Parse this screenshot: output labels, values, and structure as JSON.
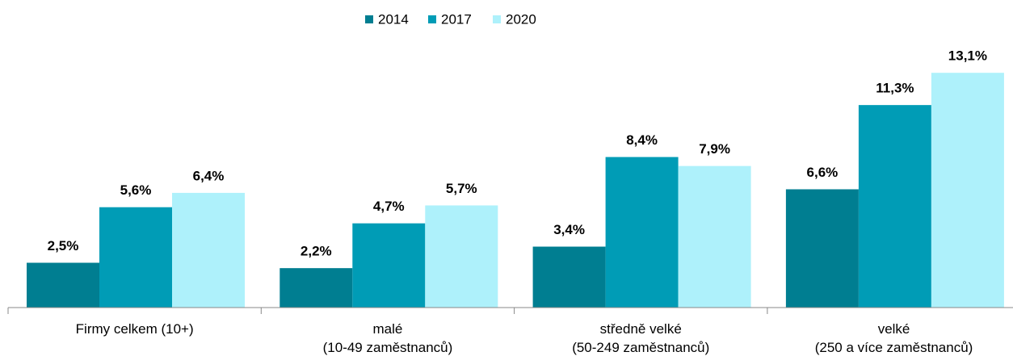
{
  "chart_data": {
    "type": "bar",
    "categories": [
      "Firmy celkem (10+)",
      "malé\n(10-49 zaměstnanců)",
      "středně velké\n(50-249 zaměstnanců)",
      "velké\n(250 a více zaměstnanců)"
    ],
    "series": [
      {
        "name": "2014",
        "color": "#007e91",
        "values": [
          2.5,
          2.2,
          3.4,
          6.6
        ],
        "value_labels": [
          "2,5%",
          "2,2%",
          "3,4%",
          "6,6%"
        ]
      },
      {
        "name": "2017",
        "color": "#009cb6",
        "values": [
          5.6,
          4.7,
          8.4,
          11.3
        ],
        "value_labels": [
          "5,6%",
          "4,7%",
          "8,4%",
          "11,3%"
        ]
      },
      {
        "name": "2020",
        "color": "#aef1fb",
        "values": [
          6.4,
          5.7,
          7.9,
          13.1
        ],
        "value_labels": [
          "6,4%",
          "5,7%",
          "7,9%",
          "13,1%"
        ]
      }
    ],
    "legend": "top"
  }
}
